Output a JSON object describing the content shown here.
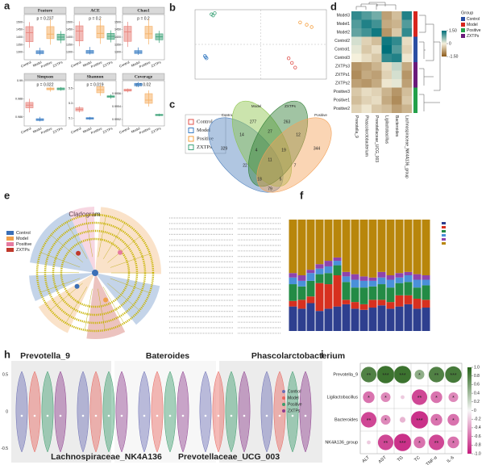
{
  "figure": {
    "panel_labels": [
      "a",
      "b",
      "c",
      "d",
      "e",
      "f",
      "h",
      "i"
    ]
  },
  "chart_data": [
    {
      "type": "box",
      "title": "Feature",
      "annotation": "p = 0.237",
      "categories": [
        "Control",
        "Model",
        "Positive",
        "ZXTPs"
      ],
      "colors": [
        "#e8847c",
        "#3d7fc4",
        "#f5b066",
        "#3fa37a"
      ],
      "ylim": [
        1250,
        1550
      ],
      "yticks": [
        1300,
        1350,
        1400,
        1450,
        1500
      ],
      "boxes": [
        {
          "min": 1330,
          "q1": 1370,
          "median": 1430,
          "q3": 1470,
          "max": 1500
        },
        {
          "min": 1280,
          "q1": 1290,
          "median": 1300,
          "q3": 1310,
          "max": 1330
        },
        {
          "min": 1350,
          "q1": 1390,
          "median": 1420,
          "q3": 1470,
          "max": 1520
        },
        {
          "min": 1360,
          "q1": 1380,
          "median": 1400,
          "q3": 1420,
          "max": 1440
        }
      ]
    },
    {
      "type": "box",
      "title": "ACE",
      "annotation": "p = 0.2",
      "categories": [
        "Control",
        "Model",
        "Positive",
        "ZXTPs"
      ],
      "colors": [
        "#e8847c",
        "#3d7fc4",
        "#f5b066",
        "#3fa37a"
      ],
      "ylim": [
        1250,
        1550
      ],
      "yticks": [
        1300,
        1350,
        1400,
        1450,
        1500
      ],
      "boxes": [
        {
          "min": 1340,
          "q1": 1375,
          "median": 1440,
          "q3": 1475,
          "max": 1505
        },
        {
          "min": 1285,
          "q1": 1292,
          "median": 1302,
          "q3": 1312,
          "max": 1335
        },
        {
          "min": 1355,
          "q1": 1395,
          "median": 1425,
          "q3": 1475,
          "max": 1525
        },
        {
          "min": 1365,
          "q1": 1385,
          "median": 1405,
          "q3": 1425,
          "max": 1445
        }
      ]
    },
    {
      "type": "box",
      "title": "Chao1",
      "annotation": "p = 0.2",
      "categories": [
        "Control",
        "Model",
        "Positive",
        "ZXTPs"
      ],
      "colors": [
        "#e8847c",
        "#3d7fc4",
        "#f5b066",
        "#3fa37a"
      ],
      "ylim": [
        1250,
        1550
      ],
      "yticks": [
        1300,
        1350,
        1400,
        1450,
        1500
      ],
      "boxes": [
        {
          "min": 1335,
          "q1": 1372,
          "median": 1435,
          "q3": 1472,
          "max": 1502
        },
        {
          "min": 1282,
          "q1": 1291,
          "median": 1301,
          "q3": 1311,
          "max": 1332
        },
        {
          "min": 1352,
          "q1": 1392,
          "median": 1422,
          "q3": 1472,
          "max": 1522
        },
        {
          "min": 1362,
          "q1": 1382,
          "median": 1402,
          "q3": 1422,
          "max": 1442
        }
      ]
    },
    {
      "type": "box",
      "title": "Simpson",
      "annotation": "p = 0.022",
      "categories": [
        "Control",
        "Model",
        "Positive",
        "ZXTPs"
      ],
      "colors": [
        "#e8847c",
        "#3d7fc4",
        "#f5b066",
        "#3fa37a"
      ],
      "ylim": [
        0.985,
        0.99
      ],
      "yticks": [
        0.986,
        0.988,
        0.99
      ],
      "boxes": [
        {
          "min": 0.9865,
          "q1": 0.987,
          "median": 0.9873,
          "q3": 0.9876,
          "max": 0.988
        },
        {
          "min": 0.9855,
          "q1": 0.9856,
          "median": 0.9857,
          "q3": 0.9858,
          "max": 0.986
        },
        {
          "min": 0.9888,
          "q1": 0.989,
          "median": 0.9891,
          "q3": 0.9892,
          "max": 0.9893
        },
        {
          "min": 0.9889,
          "q1": 0.989,
          "median": 0.9891,
          "q3": 0.9892,
          "max": 0.9893
        }
      ]
    },
    {
      "type": "box",
      "title": "Shannon",
      "annotation": "p = 0.019",
      "categories": [
        "Control",
        "Model",
        "Positive",
        "ZXTPs"
      ],
      "colors": [
        "#e8847c",
        "#3d7fc4",
        "#f5b066",
        "#3fa37a"
      ],
      "ylim": [
        5,
        5.6
      ],
      "yticks": [
        5.1,
        5.3,
        5.5
      ],
      "boxes": [
        {
          "min": 5.18,
          "q1": 5.2,
          "median": 5.22,
          "q3": 5.24,
          "max": 5.26
        },
        {
          "min": 5.08,
          "q1": 5.09,
          "median": 5.1,
          "q3": 5.11,
          "max": 5.12
        },
        {
          "min": 5.4,
          "q1": 5.44,
          "median": 5.48,
          "q3": 5.52,
          "max": 5.55
        },
        {
          "min": 5.36,
          "q1": 5.38,
          "median": 5.39,
          "q3": 5.4,
          "max": 5.42
        }
      ]
    },
    {
      "type": "box",
      "title": "Coverage",
      "annotation": "p = 0.02",
      "categories": [
        "Control",
        "Model",
        "Positive",
        "ZXTPs"
      ],
      "colors": [
        "#e8847c",
        "#3d7fc4",
        "#f5b066",
        "#3fa37a"
      ],
      "ylim": [
        0.9951,
        0.9958
      ],
      "yticks": [
        0.9952,
        0.9954,
        0.9956
      ],
      "boxes": [
        {
          "min": 0.99562,
          "q1": 0.99564,
          "median": 0.99565,
          "q3": 0.99567,
          "max": 0.99568
        },
        {
          "min": 0.9957,
          "q1": 0.99572,
          "median": 0.99574,
          "q3": 0.99576,
          "max": 0.99578
        },
        {
          "min": 0.9954,
          "q1": 0.99545,
          "median": 0.9955,
          "q3": 0.9956,
          "max": 0.99565
        },
        {
          "min": 0.99525,
          "q1": 0.99526,
          "median": 0.99527,
          "q3": 0.99528,
          "max": 0.99529
        }
      ]
    },
    {
      "type": "scatter",
      "xlim": [
        -0.4,
        0.4
      ],
      "ylim": [
        -0.3,
        0.3
      ],
      "series": [
        {
          "name": "Control",
          "color": "#e0504a",
          "x": [
            0.17,
            0.19,
            0.21
          ],
          "y": [
            -0.12,
            -0.16,
            -0.2
          ]
        },
        {
          "name": "Model",
          "color": "#3d7fc4",
          "x": [
            -0.34,
            -0.335,
            -0.33
          ],
          "y": [
            -0.1,
            -0.11,
            -0.12
          ]
        },
        {
          "name": "Positive",
          "color": "#f5a040",
          "x": [
            0.24,
            0.28,
            0.31
          ],
          "y": [
            0.19,
            0.17,
            0.15
          ]
        },
        {
          "name": "ZXTPs",
          "color": "#3fa37a",
          "x": [
            -0.3,
            -0.28,
            -0.29
          ],
          "y": [
            0.26,
            0.27,
            0.25
          ]
        }
      ]
    },
    {
      "type": "venn",
      "sets": [
        {
          "name": "Control",
          "color": "#4f81bd"
        },
        {
          "name": "Model",
          "color": "#8bc34a"
        },
        {
          "name": "ZXTPs",
          "color": "#2e7d32"
        },
        {
          "name": "Positive",
          "color": "#f4a259"
        }
      ],
      "values": [
        329,
        277,
        263,
        344,
        14,
        27,
        12,
        4,
        19,
        11,
        22,
        7,
        18,
        5,
        79
      ]
    },
    {
      "type": "heatmap",
      "rows": [
        "Model3",
        "Model1",
        "Model2",
        "Control2",
        "Control1",
        "Control3",
        "ZXTPs3",
        "ZXTPs1",
        "ZXTPs2",
        "Positive3",
        "Positive1",
        "Positive2"
      ],
      "columns": [
        "Prevotella_9",
        "Phascolarctobacterium",
        "Prevotellaceae_UCG_003",
        "Ligilactobacillus",
        "Bacteroides",
        "Lachnospiraceae_NK4A136_group"
      ],
      "values": [
        [
          1.2,
          1.0,
          0.8,
          -0.8,
          -0.5,
          1.3
        ],
        [
          1.0,
          1.3,
          1.1,
          -0.7,
          -0.6,
          1.0
        ],
        [
          0.9,
          1.1,
          1.4,
          -0.9,
          -0.4,
          1.2
        ],
        [
          0.2,
          -0.3,
          -0.5,
          1.4,
          1.2,
          -0.2
        ],
        [
          0.1,
          -0.4,
          -0.2,
          1.5,
          1.0,
          -0.3
        ],
        [
          0.0,
          -0.2,
          -0.4,
          1.2,
          1.3,
          -0.1
        ],
        [
          -0.9,
          -0.8,
          -0.6,
          -0.2,
          0.3,
          -0.7
        ],
        [
          -1.0,
          -0.7,
          -0.8,
          -0.3,
          0.2,
          -0.9
        ],
        [
          -0.8,
          -0.9,
          -0.7,
          -0.1,
          0.1,
          -0.8
        ],
        [
          -0.4,
          -0.2,
          -0.3,
          -0.6,
          -0.9,
          -0.5
        ],
        [
          -0.5,
          -0.3,
          -0.2,
          -0.7,
          -1.0,
          -0.4
        ],
        [
          -0.3,
          -0.1,
          -0.4,
          -0.5,
          -0.8,
          -0.6
        ]
      ],
      "clim": [
        -1.5,
        1.5
      ],
      "cticks": [
        {
          "value": 1.5,
          "label": "1.50"
        },
        0,
        {
          "value": -1.5,
          "label": "-1.50"
        }
      ],
      "group_title": "Group",
      "groups": [
        {
          "name": "Control",
          "color": "#2b4ea2"
        },
        {
          "name": "Model",
          "color": "#d7261e"
        },
        {
          "name": "Positive",
          "color": "#23a04a"
        },
        {
          "name": "ZXTPs",
          "color": "#6a1b7a"
        }
      ]
    },
    {
      "type": "cladogram",
      "title": "Cladogram",
      "groups": [
        {
          "name": "Control",
          "color": "#3b6fb6"
        },
        {
          "name": "Model",
          "color": "#f0a04b"
        },
        {
          "name": "Positive",
          "color": "#e67aa0"
        },
        {
          "name": "ZXTPs",
          "color": "#c0392b"
        }
      ]
    },
    {
      "type": "stacked_bar",
      "categories": [
        null,
        null,
        null,
        null,
        null,
        null,
        null,
        null,
        null,
        null,
        null,
        null,
        null,
        null,
        null,
        null
      ],
      "ylim": [
        0,
        1
      ],
      "series": [
        {
          "color": "#2e3f8f",
          "values": [
            0.22,
            0.2,
            0.25,
            0.18,
            0.2,
            0.22,
            0.24,
            0.2,
            0.19,
            0.21,
            0.23,
            0.2,
            0.22,
            0.24,
            0.2,
            0.21
          ]
        },
        {
          "color": "#d7301f",
          "values": [
            0.05,
            0.08,
            0.06,
            0.25,
            0.22,
            0.28,
            0.04,
            0.06,
            0.05,
            0.07,
            0.05,
            0.06,
            0.1,
            0.08,
            0.09,
            0.07
          ]
        },
        {
          "color": "#238b45",
          "values": [
            0.15,
            0.12,
            0.14,
            0.08,
            0.1,
            0.09,
            0.16,
            0.13,
            0.15,
            0.12,
            0.14,
            0.13,
            0.11,
            0.12,
            0.1,
            0.13
          ]
        },
        {
          "color": "#4a90d9",
          "values": [
            0.06,
            0.05,
            0.07,
            0.05,
            0.06,
            0.04,
            0.05,
            0.07,
            0.06,
            0.05,
            0.06,
            0.07,
            0.05,
            0.06,
            0.07,
            0.05
          ]
        },
        {
          "color": "#8e44ad",
          "values": [
            0.04,
            0.05,
            0.03,
            0.04,
            0.05,
            0.03,
            0.04,
            0.05,
            0.04,
            0.03,
            0.05,
            0.04,
            0.04,
            0.03,
            0.05,
            0.04
          ]
        },
        {
          "color": "#b8860b",
          "values": [
            0.48,
            0.5,
            0.45,
            0.4,
            0.37,
            0.34,
            0.47,
            0.49,
            0.51,
            0.52,
            0.47,
            0.5,
            0.48,
            0.47,
            0.49,
            0.5
          ]
        }
      ]
    },
    {
      "type": "violin",
      "titles": [
        "Prevotella_9",
        "Lachnospiraceae_NK4A136",
        "Bateroides",
        "Prevotellaceae_UCG_003",
        "Phascolarctobacterium"
      ],
      "ylim": [
        -0.6,
        0.6
      ],
      "yticks": [
        0.5,
        0,
        -0.5
      ],
      "series": [
        {
          "name": "Control",
          "color": "#6c6fb5"
        },
        {
          "name": "Model",
          "color": "#e8675f"
        },
        {
          "name": "Positive",
          "color": "#3f9e6e"
        },
        {
          "name": "ZXTPs",
          "color": "#8e3f8f"
        }
      ]
    },
    {
      "type": "dot_matrix",
      "rows": [
        "Prevotella_9",
        "Ligilactobacillus",
        "Bacteroides",
        "NK4A136_group"
      ],
      "columns": [
        "ALT",
        "AST",
        "TG",
        "TC",
        "TNF-α",
        "IL-6"
      ],
      "values": [
        [
          0.8,
          0.9,
          0.9,
          0.5,
          0.8,
          0.85
        ],
        [
          -0.6,
          -0.5,
          -0.2,
          -0.8,
          -0.6,
          -0.5
        ],
        [
          -0.8,
          -0.5,
          -0.3,
          -0.9,
          -0.6,
          -0.6
        ],
        [
          -0.2,
          -0.8,
          -0.9,
          -0.6,
          -0.8,
          -0.6
        ]
      ],
      "stars": [
        [
          "**",
          "***",
          "***",
          "*",
          "**",
          "***"
        ],
        [
          "*",
          "*",
          null,
          "**",
          "*",
          "*"
        ],
        [
          "**",
          "*",
          null,
          "***",
          "*",
          "*"
        ],
        [
          null,
          "**",
          "***",
          "*",
          "**",
          "*"
        ]
      ],
      "clim": [
        -1,
        1
      ],
      "cticks": [
        {
          "value": 1,
          "label": "1.0"
        },
        {
          "value": 0.8,
          "label": "0.8"
        },
        {
          "value": 0.6,
          "label": "0.6"
        },
        {
          "value": 0.4,
          "label": "0.4"
        },
        {
          "value": 0.2,
          "label": "0.2"
        },
        0,
        {
          "value": -0.2,
          "label": "-0.2"
        },
        {
          "value": -0.4,
          "label": "-0.4"
        },
        {
          "value": -0.6,
          "label": "-0.6"
        },
        {
          "value": -0.8,
          "label": "-0.8"
        },
        {
          "value": -1,
          "label": "-1.0"
        }
      ]
    }
  ]
}
